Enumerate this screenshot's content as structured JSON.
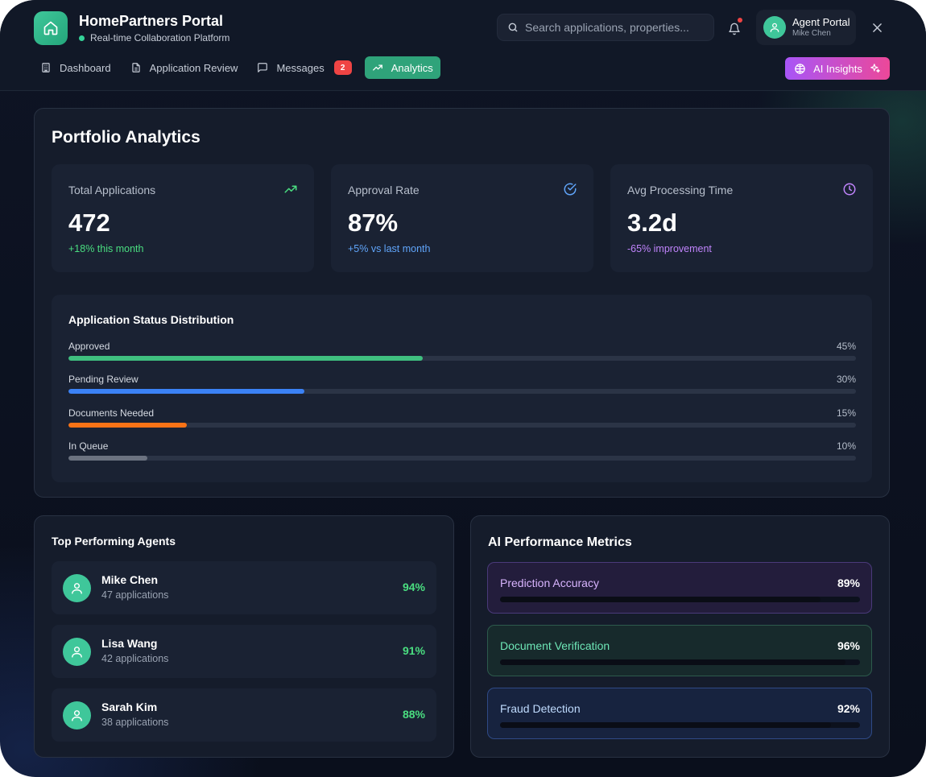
{
  "brand": {
    "title": "HomePartners Portal",
    "subtitle": "Real-time Collaboration Platform"
  },
  "search": {
    "placeholder": "Search applications, properties..."
  },
  "profile": {
    "name": "Agent Portal",
    "user": "Mike Chen"
  },
  "nav": {
    "items": [
      {
        "label": "Dashboard",
        "icon": "building-icon"
      },
      {
        "label": "Application Review",
        "icon": "document-icon"
      },
      {
        "label": "Messages",
        "icon": "message-icon",
        "badge": "2"
      },
      {
        "label": "Analytics",
        "icon": "trending-up-icon",
        "active": true
      }
    ],
    "ai_button": "AI Insights"
  },
  "portfolio": {
    "title": "Portfolio Analytics",
    "stats": [
      {
        "label": "Total Applications",
        "value": "472",
        "sub": "+18% this month",
        "color": "#4ade80",
        "icon": "trending-up-icon"
      },
      {
        "label": "Approval Rate",
        "value": "87%",
        "sub": "+5% vs last month",
        "color": "#60a5fa",
        "icon": "check-circle-icon"
      },
      {
        "label": "Avg Processing Time",
        "value": "3.2d",
        "sub": "-65% improvement",
        "color": "#c084fc",
        "icon": "clock-icon"
      }
    ],
    "distribution": {
      "title": "Application Status Distribution",
      "rows": [
        {
          "label": "Approved",
          "pct_label": "45%",
          "value": 45,
          "color": "#3fbf7f"
        },
        {
          "label": "Pending Review",
          "pct_label": "30%",
          "value": 30,
          "color": "#3b82f6"
        },
        {
          "label": "Documents Needed",
          "pct_label": "15%",
          "value": 15,
          "color": "#f97316"
        },
        {
          "label": "In Queue",
          "pct_label": "10%",
          "value": 10,
          "color": "#6b7280"
        }
      ]
    }
  },
  "agents": {
    "title": "Top Performing Agents",
    "list": [
      {
        "name": "Mike Chen",
        "apps": "47 applications",
        "score": "94%"
      },
      {
        "name": "Lisa Wang",
        "apps": "42 applications",
        "score": "91%"
      },
      {
        "name": "Sarah Kim",
        "apps": "38 applications",
        "score": "88%"
      }
    ]
  },
  "ai_metrics": {
    "title": "AI Performance Metrics",
    "list": [
      {
        "label": "Prediction Accuracy",
        "value_label": "89%",
        "value": 89,
        "bg": "#231d3c",
        "border": "#4a3a7a",
        "text": "#d8b4fe"
      },
      {
        "label": "Document Verification",
        "value_label": "96%",
        "value": 96,
        "bg": "#172a2c",
        "border": "#2d5a4c",
        "text": "#6ee7b7"
      },
      {
        "label": "Fraud Detection",
        "value_label": "92%",
        "value": 92,
        "bg": "#17233f",
        "border": "#2f4a86",
        "text": "#bfdbfe"
      }
    ]
  }
}
